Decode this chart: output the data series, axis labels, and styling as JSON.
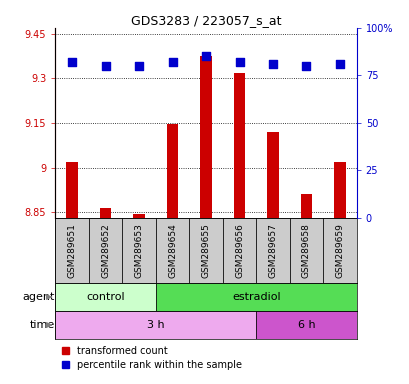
{
  "title": "GDS3283 / 223057_s_at",
  "samples": [
    "GSM289651",
    "GSM289652",
    "GSM289653",
    "GSM289654",
    "GSM289655",
    "GSM289656",
    "GSM289657",
    "GSM289658",
    "GSM289659"
  ],
  "red_values": [
    9.02,
    8.865,
    8.845,
    9.145,
    9.375,
    9.32,
    9.12,
    8.91,
    9.02
  ],
  "blue_values": [
    82,
    80,
    80,
    82,
    85,
    82,
    81,
    80,
    81
  ],
  "ylim_left": [
    8.83,
    9.47
  ],
  "ylim_right": [
    0,
    100
  ],
  "yticks_left": [
    8.85,
    9.0,
    9.15,
    9.3,
    9.45
  ],
  "yticks_right": [
    0,
    25,
    50,
    75,
    100
  ],
  "ytick_labels_left": [
    "8.85",
    "9",
    "9.15",
    "9.3",
    "9.45"
  ],
  "ytick_labels_right": [
    "0",
    "25",
    "50",
    "75",
    "100%"
  ],
  "agent_control_samples": 3,
  "time_3h_samples": 6,
  "color_red": "#cc0000",
  "color_blue": "#0000cc",
  "color_control_light": "#ccffcc",
  "color_estradiol": "#55dd55",
  "color_time_3h": "#eeaaee",
  "color_time_6h": "#cc55cc",
  "color_label_bg": "#cccccc",
  "bar_width": 0.35,
  "blue_dot_size": 40,
  "baseline": 8.83
}
